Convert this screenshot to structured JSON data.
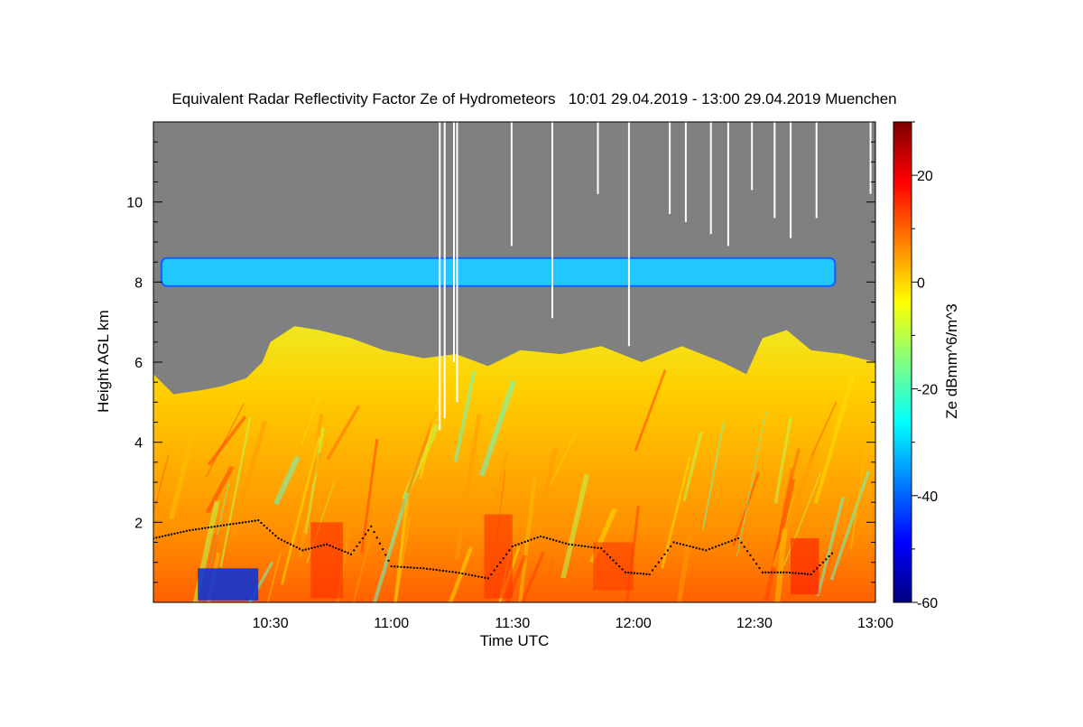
{
  "chart_data": {
    "type": "heatmap",
    "title": "Equivalent Radar Reflectivity Factor Ze of Hydrometeors   10:01 29.04.2019 - 13:00 29.04.2019 Muenchen",
    "xlabel": "Time UTC",
    "ylabel": "Height AGL km",
    "colorbar_label": "Ze dBmm^6/m^3",
    "x_range_minutes": [
      601,
      780
    ],
    "x_ticks": [
      {
        "label": "10:30",
        "minutes": 630
      },
      {
        "label": "11:00",
        "minutes": 660
      },
      {
        "label": "11:30",
        "minutes": 690
      },
      {
        "label": "12:00",
        "minutes": 720
      },
      {
        "label": "12:30",
        "minutes": 750
      },
      {
        "label": "13:00",
        "minutes": 780
      }
    ],
    "ylim": [
      0,
      12
    ],
    "y_ticks": [
      2,
      4,
      6,
      8,
      10
    ],
    "colorbar_range": [
      -60,
      30
    ],
    "colorbar_ticks": [
      20,
      0,
      -20,
      -40,
      -60
    ],
    "colors": {
      "no_signal": "#808080",
      "colormap": [
        "#00007f",
        "#0000ff",
        "#0080ff",
        "#00ffff",
        "#80ff80",
        "#ffff00",
        "#ff8000",
        "#ff0000",
        "#7f0000"
      ]
    },
    "upper_layer": {
      "base_km": 7.9,
      "top_km": 8.6,
      "start_min": 603,
      "end_min": 770,
      "ze_dbz": -27
    },
    "echo_top_km": [
      {
        "t": 601,
        "h": 5.7
      },
      {
        "t": 606,
        "h": 5.2
      },
      {
        "t": 613,
        "h": 5.3
      },
      {
        "t": 618,
        "h": 5.4
      },
      {
        "t": 624,
        "h": 5.6
      },
      {
        "t": 628,
        "h": 6.0
      },
      {
        "t": 630,
        "h": 6.5
      },
      {
        "t": 636,
        "h": 6.9
      },
      {
        "t": 642,
        "h": 6.8
      },
      {
        "t": 650,
        "h": 6.6
      },
      {
        "t": 658,
        "h": 6.3
      },
      {
        "t": 668,
        "h": 6.1
      },
      {
        "t": 676,
        "h": 6.2
      },
      {
        "t": 684,
        "h": 5.9
      },
      {
        "t": 692,
        "h": 6.3
      },
      {
        "t": 702,
        "h": 6.2
      },
      {
        "t": 712,
        "h": 6.4
      },
      {
        "t": 722,
        "h": 6.0
      },
      {
        "t": 732,
        "h": 6.4
      },
      {
        "t": 742,
        "h": 6.0
      },
      {
        "t": 748,
        "h": 5.7
      },
      {
        "t": 752,
        "h": 6.6
      },
      {
        "t": 758,
        "h": 6.8
      },
      {
        "t": 764,
        "h": 6.3
      },
      {
        "t": 772,
        "h": 6.2
      },
      {
        "t": 780,
        "h": 6.0
      }
    ],
    "cloud_base_km": [
      {
        "t": 601,
        "h": 1.6
      },
      {
        "t": 610,
        "h": 1.8
      },
      {
        "t": 620,
        "h": 1.95
      },
      {
        "t": 627,
        "h": 2.05
      },
      {
        "t": 632,
        "h": 1.6
      },
      {
        "t": 638,
        "h": 1.3
      },
      {
        "t": 644,
        "h": 1.45
      },
      {
        "t": 650,
        "h": 1.2
      },
      {
        "t": 655,
        "h": 1.9
      },
      {
        "t": 660,
        "h": 0.9
      },
      {
        "t": 668,
        "h": 0.85
      },
      {
        "t": 676,
        "h": 0.75
      },
      {
        "t": 684,
        "h": 0.6
      },
      {
        "t": 690,
        "h": 1.4
      },
      {
        "t": 697,
        "h": 1.65
      },
      {
        "t": 704,
        "h": 1.45
      },
      {
        "t": 712,
        "h": 1.35
      },
      {
        "t": 718,
        "h": 0.75
      },
      {
        "t": 724,
        "h": 0.7
      },
      {
        "t": 730,
        "h": 1.5
      },
      {
        "t": 738,
        "h": 1.3
      },
      {
        "t": 746,
        "h": 1.6
      },
      {
        "t": 752,
        "h": 0.75
      },
      {
        "t": 758,
        "h": 0.75
      },
      {
        "t": 764,
        "h": 0.7
      },
      {
        "t": 770,
        "h": 1.3
      }
    ],
    "gap_lines_min": [
      {
        "t": 672.0,
        "bottom_km": 4.3
      },
      {
        "t": 673.2,
        "bottom_km": 4.6
      },
      {
        "t": 675.5,
        "bottom_km": 6.0
      },
      {
        "t": 676.3,
        "bottom_km": 5.0
      },
      {
        "t": 689.8,
        "bottom_km": 8.9
      },
      {
        "t": 699.9,
        "bottom_km": 7.1
      },
      {
        "t": 711.2,
        "bottom_km": 10.2
      },
      {
        "t": 718.9,
        "bottom_km": 6.4
      },
      {
        "t": 729.0,
        "bottom_km": 9.7
      },
      {
        "t": 733.0,
        "bottom_km": 9.5
      },
      {
        "t": 739.2,
        "bottom_km": 9.2
      },
      {
        "t": 743.5,
        "bottom_km": 8.9
      },
      {
        "t": 749.4,
        "bottom_km": 10.3
      },
      {
        "t": 755.0,
        "bottom_km": 9.6
      },
      {
        "t": 759.0,
        "bottom_km": 9.1
      },
      {
        "t": 765.4,
        "bottom_km": 9.6
      },
      {
        "t": 778.8,
        "bottom_km": 10.2
      }
    ]
  }
}
